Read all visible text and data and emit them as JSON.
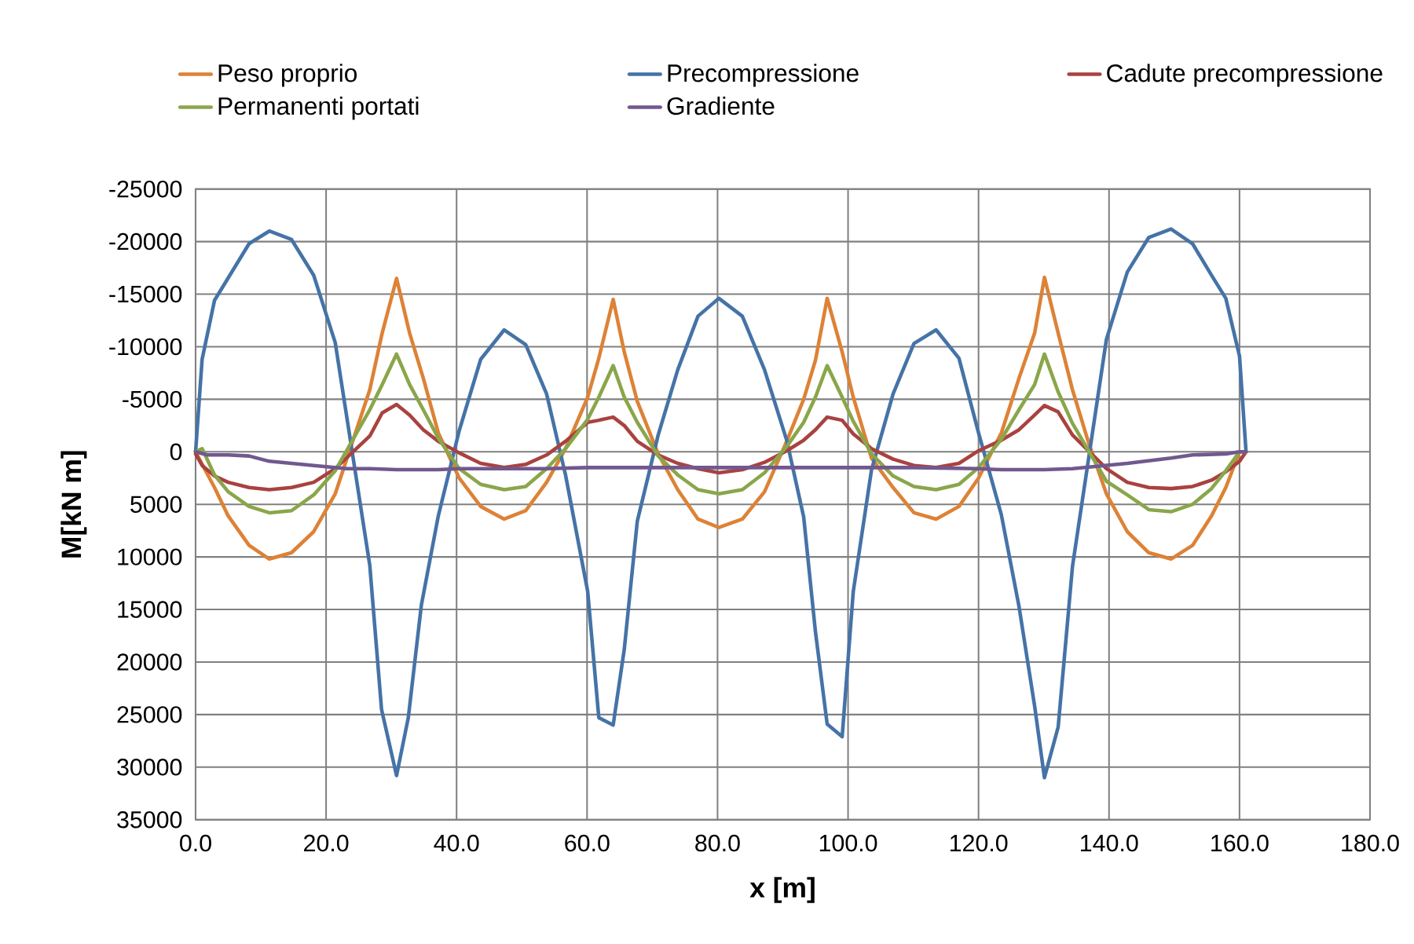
{
  "chart_data": {
    "type": "line",
    "xlabel": "x [m]",
    "ylabel": "M[kN m]",
    "xlim": [
      0,
      180
    ],
    "ylim": [
      35000,
      -25000
    ],
    "xticks": [
      {
        "value": 0,
        "label": "0.0"
      },
      {
        "value": 20,
        "label": "20.0"
      },
      {
        "value": 40,
        "label": "40.0"
      },
      {
        "value": 60,
        "label": "60.0"
      },
      {
        "value": 80,
        "label": "80.0"
      },
      {
        "value": 100,
        "label": "100.0"
      },
      {
        "value": 120,
        "label": "120.0"
      },
      {
        "value": 140,
        "label": "140.0"
      },
      {
        "value": 160,
        "label": "160.0"
      },
      {
        "value": 180,
        "label": "180.0"
      }
    ],
    "yticks": [
      -25000,
      -20000,
      -15000,
      -10000,
      -5000,
      0,
      5000,
      10000,
      15000,
      20000,
      25000,
      30000,
      35000
    ],
    "grid": true,
    "legend": "top",
    "marker": "none",
    "line_style": "solid",
    "series": [
      {
        "name": "Peso proprio",
        "color": "#dd8236",
        "x": [
          0,
          2.9,
          5,
          8.2,
          11.3,
          14.7,
          18.1,
          21.4,
          26.7,
          28.6,
          30.8,
          32.8,
          34.9,
          37.2,
          40.4,
          43.7,
          47.3,
          50.6,
          53.8,
          56.7,
          60.1,
          61.8,
          64.0,
          65.7,
          67.7,
          70.9,
          73.9,
          77.0,
          80.2,
          83.8,
          87.2,
          90.6,
          93.2,
          95.0,
          96.8,
          99.1,
          100.8,
          103.6,
          106.9,
          110.1,
          113.5,
          117.0,
          120.0,
          123.5,
          126.2,
          128.6,
          130.1,
          132.2,
          134.4,
          136.8,
          139.6,
          142.8,
          146.1,
          149.5,
          152.8,
          155.7,
          157.9,
          160.0,
          161.0
        ],
        "values": [
          0,
          3400,
          6100,
          8900,
          10200,
          9600,
          7600,
          4000,
          -5900,
          -11300,
          -16500,
          -11300,
          -7000,
          -1800,
          2500,
          5200,
          6400,
          5600,
          2900,
          -300,
          -5200,
          -8900,
          -14500,
          -9500,
          -4800,
          200,
          3600,
          6400,
          7200,
          6400,
          3800,
          -1000,
          -5000,
          -8700,
          -14600,
          -9500,
          -5200,
          600,
          3400,
          5800,
          6400,
          5200,
          2500,
          -1800,
          -7000,
          -11300,
          -16600,
          -11300,
          -5900,
          -1000,
          4000,
          7600,
          9600,
          10200,
          8900,
          6100,
          3400,
          0,
          0
        ]
      },
      {
        "name": "Precompressione",
        "color": "#4573a7",
        "x": [
          0,
          1.0,
          2.9,
          8.2,
          11.3,
          14.7,
          18.1,
          21.4,
          26.7,
          28.5,
          30.8,
          32.6,
          34.6,
          37.2,
          40.4,
          43.7,
          47.3,
          50.6,
          53.8,
          56.7,
          60.1,
          61.8,
          64.0,
          65.7,
          67.7,
          70.9,
          73.9,
          77.0,
          80.2,
          83.8,
          87.2,
          90.6,
          93.2,
          95.0,
          96.8,
          99.1,
          100.8,
          103.6,
          106.9,
          110.1,
          113.5,
          117.0,
          120.0,
          123.5,
          126.2,
          128.6,
          130.1,
          132.2,
          134.4,
          139.6,
          142.8,
          146.1,
          149.5,
          152.8,
          155.7,
          157.9,
          160.0,
          161.0
        ],
        "values": [
          0,
          -8800,
          -14400,
          -19800,
          -21000,
          -20200,
          -16800,
          -10400,
          10800,
          24500,
          30800,
          25300,
          14600,
          6100,
          -2000,
          -8800,
          -11600,
          -10200,
          -5500,
          2200,
          13300,
          25300,
          26000,
          18800,
          6600,
          -1600,
          -7800,
          -12900,
          -14600,
          -12900,
          -7800,
          -1100,
          6200,
          17100,
          25900,
          27100,
          13300,
          1700,
          -5500,
          -10300,
          -11600,
          -8900,
          -1800,
          6000,
          14700,
          24200,
          31000,
          26200,
          10900,
          -10700,
          -17100,
          -20400,
          -21200,
          -19800,
          -16800,
          -14600,
          -9100,
          0
        ]
      },
      {
        "name": "Cadute precompressione",
        "color": "#a9423f",
        "x": [
          0,
          1.0,
          2.9,
          5,
          8.2,
          11.3,
          14.7,
          18.1,
          21.4,
          26.7,
          28.6,
          30.8,
          32.8,
          34.9,
          37.2,
          40.4,
          43.7,
          47.3,
          50.6,
          53.8,
          56.7,
          60.1,
          61.8,
          64.0,
          65.7,
          67.7,
          70.9,
          73.9,
          77.0,
          80.2,
          83.8,
          87.2,
          90.6,
          93.2,
          95.0,
          96.8,
          99.1,
          100.8,
          103.6,
          106.9,
          110.1,
          113.5,
          117.0,
          120.0,
          123.5,
          126.2,
          128.6,
          130.1,
          132.2,
          134.4,
          139.6,
          142.8,
          146.1,
          149.5,
          152.8,
          155.7,
          157.9,
          160.0,
          161.0
        ],
        "values": [
          200,
          1300,
          2300,
          2900,
          3400,
          3600,
          3400,
          2900,
          1600,
          -1500,
          -3700,
          -4500,
          -3500,
          -2100,
          -1000,
          100,
          1100,
          1500,
          1200,
          300,
          -1000,
          -2800,
          -3000,
          -3300,
          -2500,
          -1000,
          300,
          1100,
          1600,
          2000,
          1700,
          1000,
          -100,
          -1100,
          -2100,
          -3300,
          -3000,
          -1700,
          -300,
          700,
          1300,
          1500,
          1100,
          -100,
          -1100,
          -2100,
          -3500,
          -4400,
          -3800,
          -1600,
          1600,
          2900,
          3400,
          3500,
          3300,
          2700,
          1900,
          900,
          0
        ]
      },
      {
        "name": "Permanenti portati",
        "color": "#8aa64a",
        "x": [
          0,
          1.0,
          2.9,
          5,
          8.2,
          11.3,
          14.7,
          18.1,
          21.4,
          26.7,
          28.6,
          30.8,
          32.8,
          34.9,
          37.2,
          40.4,
          43.7,
          47.3,
          50.6,
          53.8,
          56.7,
          60.1,
          61.8,
          64.0,
          65.7,
          67.7,
          70.9,
          73.9,
          77.0,
          80.2,
          83.8,
          87.2,
          90.6,
          93.2,
          95.0,
          96.8,
          99.1,
          100.8,
          103.6,
          106.9,
          110.1,
          113.5,
          117.0,
          120.0,
          123.5,
          126.2,
          128.6,
          130.1,
          132.2,
          134.4,
          139.6,
          142.8,
          146.1,
          149.5,
          152.8,
          155.7,
          157.9,
          160.0,
          161.0
        ],
        "values": [
          0,
          -300,
          2200,
          3800,
          5200,
          5800,
          5600,
          4100,
          1800,
          -4000,
          -6400,
          -9300,
          -6400,
          -4000,
          -1300,
          1600,
          3100,
          3600,
          3300,
          1600,
          -300,
          -3100,
          -5200,
          -8200,
          -5200,
          -2800,
          400,
          2200,
          3600,
          4000,
          3600,
          2000,
          -500,
          -2800,
          -5200,
          -8200,
          -5200,
          -2900,
          200,
          2300,
          3300,
          3600,
          3100,
          1500,
          -1200,
          -4000,
          -6400,
          -9300,
          -5700,
          -2700,
          2800,
          4100,
          5500,
          5700,
          5000,
          3500,
          1800,
          0,
          0
        ]
      },
      {
        "name": "Gradiente",
        "color": "#71588f",
        "x": [
          0,
          1.8,
          5,
          8.2,
          11.3,
          18.1,
          23.2,
          26.7,
          30.8,
          37.2,
          40.4,
          53.8,
          60.1,
          110.1,
          120.0,
          123.5,
          130.1,
          134.4,
          142.8,
          149.5,
          152.8,
          157.9,
          160.0,
          161.0
        ],
        "values": [
          0,
          300,
          300,
          400,
          900,
          1300,
          1600,
          1600,
          1700,
          1700,
          1600,
          1600,
          1500,
          1500,
          1600,
          1700,
          1700,
          1600,
          1100,
          600,
          300,
          200,
          0,
          0
        ]
      }
    ]
  }
}
